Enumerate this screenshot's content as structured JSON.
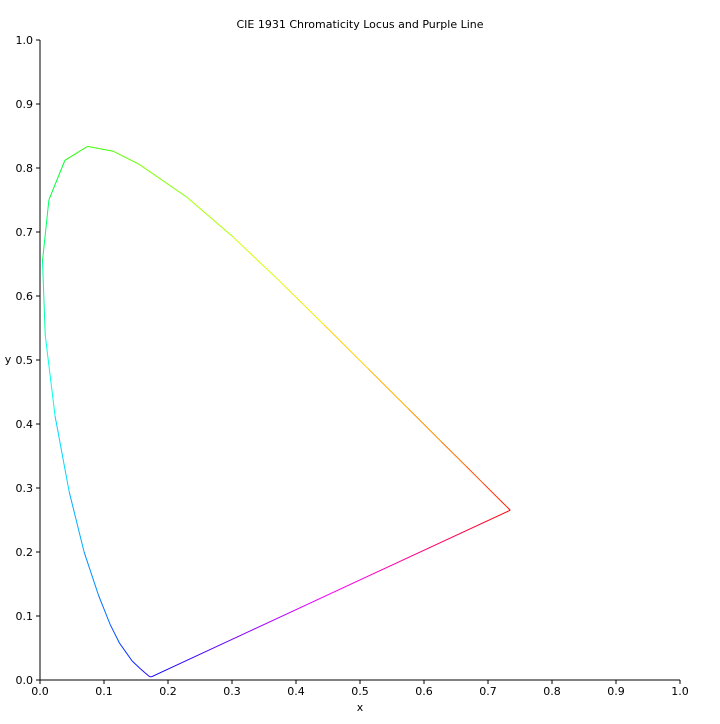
{
  "chart_data": {
    "type": "line",
    "title": "CIE 1931 Chromaticity Locus and Purple Line",
    "x_label": "x",
    "y_label": "y",
    "xlim": [
      0,
      1
    ],
    "ylim": [
      0,
      1
    ],
    "xticks": [
      {
        "value": 0,
        "label": "0.0"
      },
      0.1,
      0.2,
      0.3,
      0.4,
      0.5,
      0.6,
      0.7,
      0.8,
      0.9,
      {
        "value": 1,
        "label": "1.0"
      }
    ],
    "yticks": [
      {
        "value": 0,
        "label": "0.0"
      },
      0.1,
      0.2,
      0.3,
      0.4,
      0.5,
      0.6,
      0.7,
      0.8,
      0.9,
      {
        "value": 1,
        "label": "1.0"
      }
    ],
    "grid": false,
    "series": [
      {
        "x": [
          0.1741,
          0.1714,
          0.1644,
          0.1566,
          0.144,
          0.1241,
          0.1096,
          0.0913,
          0.0687,
          0.0454,
          0.0235,
          0.0082,
          0.0039,
          0.0139,
          0.0389,
          0.0743,
          0.1142,
          0.1547,
          0.2296,
          0.3016,
          0.3731,
          0.4441,
          0.5125,
          0.5752,
          0.627,
          0.6658,
          0.6915,
          0.719,
          0.73,
          0.7347
        ],
        "values": [
          0.005,
          0.0051,
          0.0109,
          0.0177,
          0.0297,
          0.0578,
          0.0868,
          0.1327,
          0.2007,
          0.295,
          0.4127,
          0.5384,
          0.6548,
          0.7502,
          0.812,
          0.8338,
          0.8262,
          0.8059,
          0.7543,
          0.6923,
          0.6245,
          0.5547,
          0.4866,
          0.4242,
          0.3725,
          0.334,
          0.3083,
          0.2809,
          0.27,
          0.2653
        ],
        "colors": [
          "#3a00ff",
          "#2a00ff",
          "#1a10ff",
          "#1020ff",
          "#0030ff",
          "#0050ff",
          "#0070ff",
          "#0090ff",
          "#00b0ff",
          "#00d8ff",
          "#00ffe0",
          "#00ffa0",
          "#00ff60",
          "#00ff30",
          "#20ff00",
          "#40ff00",
          "#60ff00",
          "#80ff00",
          "#a8ff00",
          "#d0ff00",
          "#f0f000",
          "#ffd000",
          "#ffb000",
          "#ff9000",
          "#ff7000",
          "#ff5000",
          "#ff3000",
          "#ff1800",
          "#ff0800",
          "#ff0000"
        ]
      },
      {
        "x": [
          0.7347,
          0.1741
        ],
        "values": [
          0.2653,
          0.005
        ],
        "gradient": [
          "#ff0000",
          "#ff00ff",
          "#0000ff"
        ]
      }
    ]
  }
}
